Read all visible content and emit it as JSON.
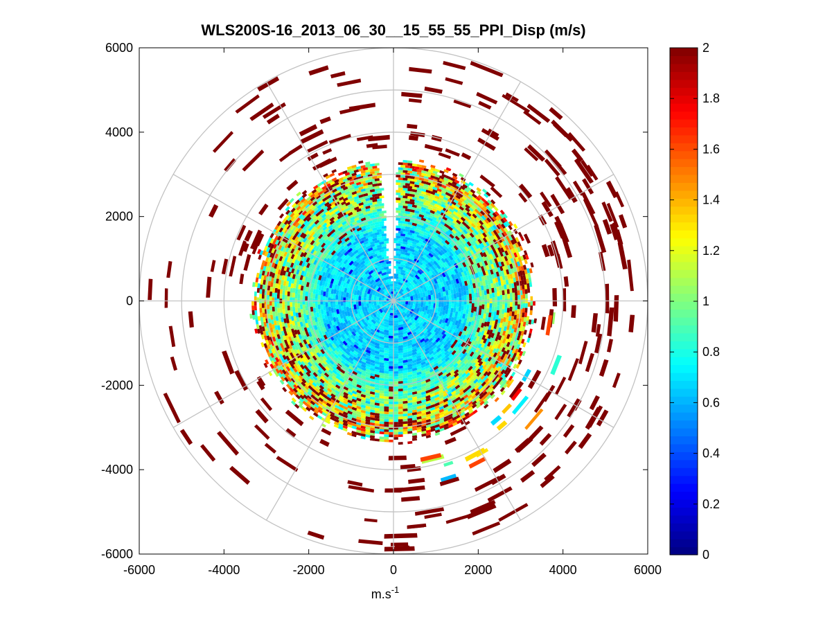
{
  "chart_data": {
    "type": "heatmap",
    "subtype": "polar-ppi",
    "title": "WLS200S-16_2013_06_30__15_55_55_PPI_Disp (m/s)",
    "xlabel": "m.s",
    "xlabel_superscript": "-1",
    "ylabel": "",
    "xlim": [
      -6000,
      6000
    ],
    "ylim": [
      -6000,
      6000
    ],
    "x_ticks": [
      -6000,
      -4000,
      -2000,
      0,
      2000,
      4000,
      6000
    ],
    "y_ticks": [
      -6000,
      -4000,
      -2000,
      0,
      2000,
      4000,
      6000
    ],
    "x_tick_labels": [
      "-6000",
      "-4000",
      "-2000",
      "0",
      "2000",
      "4000",
      "6000"
    ],
    "y_tick_labels": [
      "-6000",
      "-4000",
      "-2000",
      "0",
      "2000",
      "4000",
      "6000"
    ],
    "polar_grid": {
      "rings": [
        1000,
        2000,
        3000,
        4000,
        5000,
        6000
      ],
      "spoke_angles_deg": [
        0,
        30,
        60,
        90,
        120,
        150,
        180,
        210,
        240,
        270,
        300,
        330
      ]
    },
    "colorbar": {
      "colormap": "jet",
      "range": [
        0,
        2
      ],
      "ticks": [
        0,
        0.2,
        0.4,
        0.6,
        0.8,
        1,
        1.2,
        1.4,
        1.6,
        1.8,
        2
      ],
      "tick_labels": [
        "0",
        "0.2",
        "0.4",
        "0.6",
        "0.8",
        "1",
        "1.2",
        "1.4",
        "1.6",
        "1.8",
        "2"
      ]
    },
    "field_description": {
      "value_range": [
        0,
        2
      ],
      "dense_region_max_range": 3400,
      "sparse_region_max_range": 5900,
      "gap_azimuth_deg": [
        -6,
        2
      ]
    }
  }
}
